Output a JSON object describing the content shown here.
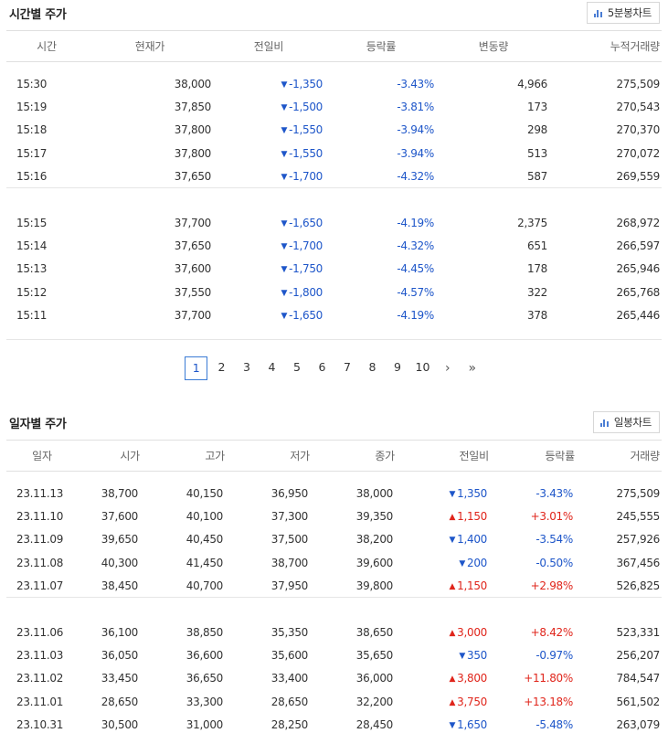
{
  "time_section": {
    "title": "시간별 주가",
    "chart_button": "5분봉차트",
    "headers": [
      "시간",
      "현재가",
      "전일비",
      "등락률",
      "변동량",
      "누적거래량"
    ],
    "groups": [
      [
        {
          "time": "15:30",
          "price": "38,000",
          "dir": "down",
          "change": "-1,350",
          "rate": "-3.43%",
          "vol": "4,966",
          "cum": "275,509"
        },
        {
          "time": "15:19",
          "price": "37,850",
          "dir": "down",
          "change": "-1,500",
          "rate": "-3.81%",
          "vol": "173",
          "cum": "270,543"
        },
        {
          "time": "15:18",
          "price": "37,800",
          "dir": "down",
          "change": "-1,550",
          "rate": "-3.94%",
          "vol": "298",
          "cum": "270,370"
        },
        {
          "time": "15:17",
          "price": "37,800",
          "dir": "down",
          "change": "-1,550",
          "rate": "-3.94%",
          "vol": "513",
          "cum": "270,072"
        },
        {
          "time": "15:16",
          "price": "37,650",
          "dir": "down",
          "change": "-1,700",
          "rate": "-4.32%",
          "vol": "587",
          "cum": "269,559"
        }
      ],
      [
        {
          "time": "15:15",
          "price": "37,700",
          "dir": "down",
          "change": "-1,650",
          "rate": "-4.19%",
          "vol": "2,375",
          "cum": "268,972"
        },
        {
          "time": "15:14",
          "price": "37,650",
          "dir": "down",
          "change": "-1,700",
          "rate": "-4.32%",
          "vol": "651",
          "cum": "266,597"
        },
        {
          "time": "15:13",
          "price": "37,600",
          "dir": "down",
          "change": "-1,750",
          "rate": "-4.45%",
          "vol": "178",
          "cum": "265,946"
        },
        {
          "time": "15:12",
          "price": "37,550",
          "dir": "down",
          "change": "-1,800",
          "rate": "-4.57%",
          "vol": "322",
          "cum": "265,768"
        },
        {
          "time": "15:11",
          "price": "37,700",
          "dir": "down",
          "change": "-1,650",
          "rate": "-4.19%",
          "vol": "378",
          "cum": "265,446"
        }
      ]
    ]
  },
  "pagination": {
    "pages": [
      "1",
      "2",
      "3",
      "4",
      "5",
      "6",
      "7",
      "8",
      "9",
      "10"
    ],
    "active": "1",
    "next": "›",
    "last": "»"
  },
  "daily_section": {
    "title": "일자별 주가",
    "chart_button": "일봉차트",
    "headers": [
      "일자",
      "시가",
      "고가",
      "저가",
      "종가",
      "전일비",
      "등락률",
      "거래량"
    ],
    "groups": [
      [
        {
          "date": "23.11.13",
          "open": "38,700",
          "high": "40,150",
          "low": "36,950",
          "close": "38,000",
          "dir": "down",
          "change": "1,350",
          "rate": "-3.43%",
          "vol": "275,509"
        },
        {
          "date": "23.11.10",
          "open": "37,600",
          "high": "40,100",
          "low": "37,300",
          "close": "39,350",
          "dir": "up",
          "change": "1,150",
          "rate": "+3.01%",
          "vol": "245,555"
        },
        {
          "date": "23.11.09",
          "open": "39,650",
          "high": "40,450",
          "low": "37,500",
          "close": "38,200",
          "dir": "down",
          "change": "1,400",
          "rate": "-3.54%",
          "vol": "257,926"
        },
        {
          "date": "23.11.08",
          "open": "40,300",
          "high": "41,450",
          "low": "38,700",
          "close": "39,600",
          "dir": "down",
          "change": "200",
          "rate": "-0.50%",
          "vol": "367,456"
        },
        {
          "date": "23.11.07",
          "open": "38,450",
          "high": "40,700",
          "low": "37,950",
          "close": "39,800",
          "dir": "up",
          "change": "1,150",
          "rate": "+2.98%",
          "vol": "526,825"
        }
      ],
      [
        {
          "date": "23.11.06",
          "open": "36,100",
          "high": "38,850",
          "low": "35,350",
          "close": "38,650",
          "dir": "up",
          "change": "3,000",
          "rate": "+8.42%",
          "vol": "523,331"
        },
        {
          "date": "23.11.03",
          "open": "36,050",
          "high": "36,600",
          "low": "35,600",
          "close": "35,650",
          "dir": "down",
          "change": "350",
          "rate": "-0.97%",
          "vol": "256,207"
        },
        {
          "date": "23.11.02",
          "open": "33,450",
          "high": "36,650",
          "low": "33,400",
          "close": "36,000",
          "dir": "up",
          "change": "3,800",
          "rate": "+11.80%",
          "vol": "784,547"
        },
        {
          "date": "23.11.01",
          "open": "28,650",
          "high": "33,300",
          "low": "28,650",
          "close": "32,200",
          "dir": "up",
          "change": "3,750",
          "rate": "+13.18%",
          "vol": "561,502"
        },
        {
          "date": "23.10.31",
          "open": "30,500",
          "high": "31,000",
          "low": "28,250",
          "close": "28,450",
          "dir": "down",
          "change": "1,650",
          "rate": "-5.48%",
          "vol": "263,079"
        }
      ]
    ]
  },
  "colors": {
    "down": "#1e56c9",
    "up": "#e0251b",
    "accent": "#3a7bd5"
  },
  "icons": {
    "chart": "bar-chart-icon",
    "down": "▼",
    "up": "▲"
  }
}
